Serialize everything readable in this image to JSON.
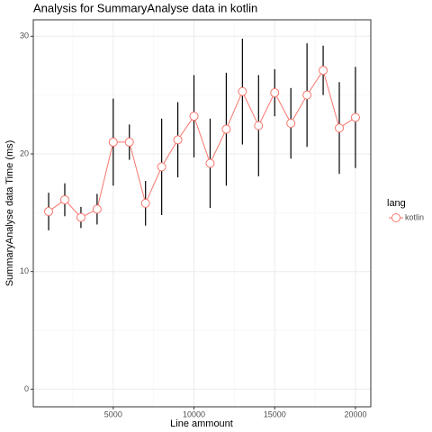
{
  "chart_data": {
    "type": "line",
    "title": "Analysis for SummaryAnalyse data in kotlin",
    "x_label": "Line ammount",
    "y_label": "SummaryAnalyse data Time (ms)",
    "legend_title": "lang",
    "legend_position": "right",
    "grid": true,
    "x": [
      1000,
      2000,
      3000,
      4000,
      5000,
      6000,
      7000,
      8000,
      9000,
      10000,
      11000,
      12000,
      13000,
      14000,
      15000,
      16000,
      17000,
      18000,
      19000,
      20000
    ],
    "series": [
      {
        "name": "kotlin",
        "color": "#F8766D",
        "values": [
          15.1,
          16.1,
          14.6,
          15.3,
          21.0,
          21.0,
          15.8,
          18.9,
          21.2,
          23.2,
          19.2,
          22.1,
          25.3,
          22.4,
          25.2,
          22.6,
          25.0,
          27.1,
          22.2,
          23.1
        ],
        "errors": [
          1.6,
          1.4,
          0.9,
          1.3,
          3.7,
          1.5,
          1.9,
          4.1,
          3.2,
          3.5,
          3.8,
          4.8,
          4.5,
          4.3,
          2.0,
          3.0,
          4.4,
          2.1,
          3.9,
          4.3
        ]
      }
    ],
    "xlim": [
      50,
      20950
    ],
    "xticks": [
      5000,
      10000,
      15000,
      20000
    ],
    "xminor_ticks": [
      2500,
      7500,
      12500,
      17500
    ],
    "ylim": [
      -1.5,
      31.4
    ],
    "yticks": [
      0,
      10,
      20,
      30
    ],
    "yminor_ticks": [
      5,
      15,
      25
    ]
  }
}
